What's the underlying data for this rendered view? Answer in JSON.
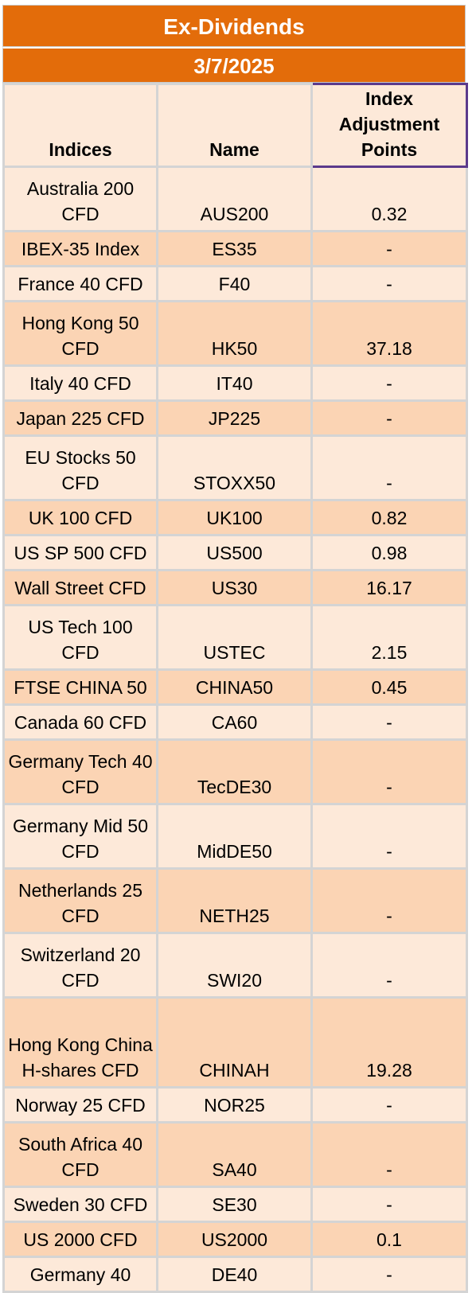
{
  "title": "Ex-Dividends",
  "date": "3/7/2025",
  "columns": {
    "indices": "Indices",
    "name": "Name",
    "adjustment": "Index Adjustment Points"
  },
  "rows": [
    {
      "index": "Australia 200 CFD",
      "name": "AUS200",
      "points": "0.32"
    },
    {
      "index": "IBEX-35 Index",
      "name": "ES35",
      "points": "-"
    },
    {
      "index": "France 40 CFD",
      "name": "F40",
      "points": "-"
    },
    {
      "index": "Hong Kong 50 CFD",
      "name": "HK50",
      "points": "37.18"
    },
    {
      "index": "Italy 40 CFD",
      "name": "IT40",
      "points": "-"
    },
    {
      "index": "Japan 225 CFD",
      "name": "JP225",
      "points": "-"
    },
    {
      "index": "EU Stocks 50 CFD",
      "name": "STOXX50",
      "points": "-"
    },
    {
      "index": "UK 100 CFD",
      "name": "UK100",
      "points": "0.82"
    },
    {
      "index": "US SP 500 CFD",
      "name": "US500",
      "points": "0.98"
    },
    {
      "index": "Wall Street CFD",
      "name": "US30",
      "points": "16.17"
    },
    {
      "index": "US Tech 100 CFD",
      "name": "USTEC",
      "points": "2.15"
    },
    {
      "index": "FTSE CHINA 50",
      "name": "CHINA50",
      "points": "0.45"
    },
    {
      "index": "Canada 60 CFD",
      "name": "CA60",
      "points": "-"
    },
    {
      "index": "Germany Tech 40 CFD",
      "name": "TecDE30",
      "points": "-"
    },
    {
      "index": "Germany Mid 50 CFD",
      "name": "MidDE50",
      "points": "-"
    },
    {
      "index": "Netherlands 25 CFD",
      "name": "NETH25",
      "points": "-"
    },
    {
      "index": "Switzerland 20 CFD",
      "name": "SWI20",
      "points": "-"
    },
    {
      "index": "Hong Kong China H-shares CFD",
      "name": "CHINAH",
      "points": "19.28"
    },
    {
      "index": "Norway 25 CFD",
      "name": "NOR25",
      "points": "-"
    },
    {
      "index": "South Africa 40 CFD",
      "name": "SA40",
      "points": "-"
    },
    {
      "index": "Sweden 30 CFD",
      "name": "SE30",
      "points": "-"
    },
    {
      "index": "US 2000 CFD",
      "name": "US2000",
      "points": "0.1"
    },
    {
      "index": "Germany 40",
      "name": "DE40",
      "points": "-"
    }
  ],
  "colors": {
    "banner": "#e36c0a",
    "row_light": "#fde9d9",
    "row_dark": "#fbd4b4",
    "header_border": "#5b3a8c"
  }
}
